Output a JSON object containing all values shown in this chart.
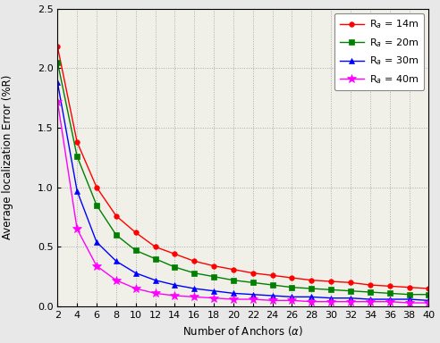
{
  "x": [
    2,
    4,
    6,
    8,
    10,
    12,
    14,
    16,
    18,
    20,
    22,
    24,
    26,
    28,
    30,
    32,
    34,
    36,
    38,
    40
  ],
  "Ra_14": [
    2.18,
    1.38,
    1.0,
    0.76,
    0.62,
    0.5,
    0.44,
    0.38,
    0.34,
    0.31,
    0.28,
    0.26,
    0.24,
    0.22,
    0.21,
    0.2,
    0.18,
    0.17,
    0.16,
    0.15
  ],
  "Ra_20": [
    2.05,
    1.26,
    0.85,
    0.6,
    0.47,
    0.4,
    0.33,
    0.28,
    0.25,
    0.22,
    0.2,
    0.18,
    0.16,
    0.15,
    0.14,
    0.13,
    0.12,
    0.11,
    0.1,
    0.1
  ],
  "Ra_30": [
    1.88,
    0.97,
    0.54,
    0.38,
    0.28,
    0.22,
    0.18,
    0.15,
    0.13,
    0.11,
    0.1,
    0.09,
    0.08,
    0.08,
    0.07,
    0.07,
    0.06,
    0.06,
    0.06,
    0.05
  ],
  "Ra_40": [
    1.72,
    0.65,
    0.34,
    0.22,
    0.15,
    0.11,
    0.09,
    0.08,
    0.07,
    0.06,
    0.06,
    0.05,
    0.05,
    0.04,
    0.04,
    0.04,
    0.04,
    0.04,
    0.03,
    0.03
  ],
  "colors": [
    "#ff0000",
    "#008000",
    "#0000ff",
    "#ff00ff"
  ],
  "markers": [
    "o",
    "s",
    "^",
    "*"
  ],
  "markersizes": [
    4,
    4,
    5,
    7
  ],
  "legend_labels": [
    "R$_a$ = 14m",
    "R$_a$ = 20m",
    "R$_a$ = 30m",
    "R$_a$ = 40m"
  ],
  "xlabel": "Number of Anchors ($\\alpha$)",
  "ylabel": "Average localization Error (%R)",
  "xlim": [
    2,
    40
  ],
  "ylim": [
    0,
    2.5
  ],
  "yticks": [
    0,
    0.5,
    1.0,
    1.5,
    2.0,
    2.5
  ],
  "xticks": [
    2,
    4,
    6,
    8,
    10,
    12,
    14,
    16,
    18,
    20,
    22,
    24,
    26,
    28,
    30,
    32,
    34,
    36,
    38,
    40
  ],
  "bg_color": "#f0f0e8",
  "grid_color": "#aaaaaa",
  "linewidth": 1.0
}
